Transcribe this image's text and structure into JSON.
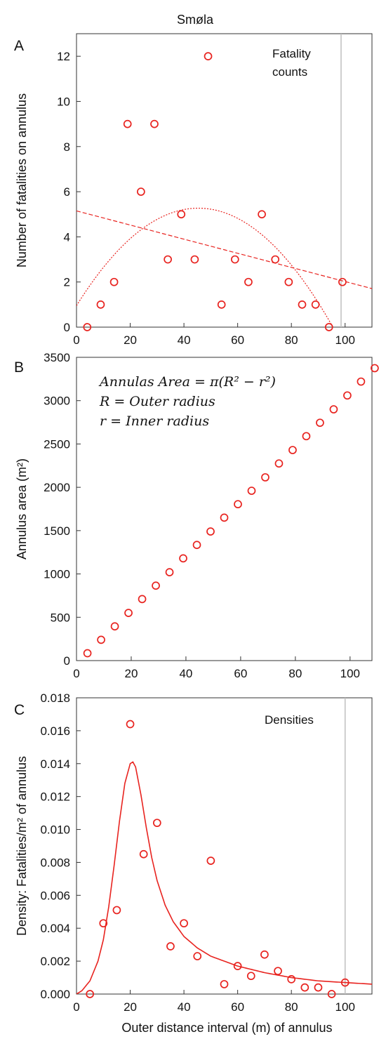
{
  "figure_title": "Smøla",
  "chart_data": [
    {
      "panel_label": "A",
      "type": "scatter",
      "ylabel": "Number of fatalities on annulus",
      "xlim": [
        0,
        110
      ],
      "ylim": [
        0,
        13
      ],
      "xticks": [
        0,
        20,
        40,
        60,
        80,
        100
      ],
      "yticks": [
        0,
        2,
        4,
        6,
        8,
        10,
        12
      ],
      "xtick_labels": [
        "0",
        "20",
        "40",
        "60",
        "80",
        "100"
      ],
      "ytick_labels": [
        "0",
        "2",
        "4",
        "6",
        "8",
        "10",
        "12"
      ],
      "annotation_lines": [
        "Fatality",
        "counts"
      ],
      "vline_x": 98.5,
      "marker_color": "#e8231f",
      "vline_color": "#bfbfbf",
      "points": {
        "x": [
          4,
          9,
          14,
          19,
          24,
          29,
          34,
          39,
          44,
          49,
          54,
          59,
          64,
          69,
          74,
          79,
          84,
          89,
          94,
          99
        ],
        "y": [
          0,
          1,
          2,
          9,
          6,
          9,
          3,
          5,
          3,
          12,
          1,
          3,
          2,
          5,
          3,
          2,
          1,
          1,
          0,
          2
        ]
      },
      "fits": [
        {
          "kind": "linear",
          "intercept": 5.15,
          "slope": -0.0313,
          "x_range": [
            0,
            110
          ],
          "style": "dashed"
        },
        {
          "kind": "quadratic",
          "a": -0.0021,
          "b": 0.1905,
          "c": 0.95,
          "x_range": [
            0,
            110
          ],
          "style": "dotted"
        }
      ]
    },
    {
      "panel_label": "B",
      "type": "scatter",
      "ylabel": "Annulus area (m²)",
      "xlim": [
        0,
        108
      ],
      "ylim": [
        0,
        3500
      ],
      "xticks": [
        0,
        20,
        40,
        60,
        80,
        100
      ],
      "yticks": [
        0,
        500,
        1000,
        1500,
        2000,
        2500,
        3000,
        3500
      ],
      "xtick_labels": [
        "0",
        "20",
        "40",
        "60",
        "80",
        "100"
      ],
      "ytick_labels": [
        "0",
        "500",
        "1000",
        "1500",
        "2000",
        "2500",
        "3000",
        "3500"
      ],
      "formula_lines": [
        "Annulas Area = π(R² − r²)",
        "R = Outer radius",
        "r = Inner radius"
      ],
      "marker_color": "#e8231f",
      "points": {
        "x": [
          4,
          9,
          14,
          19,
          24,
          29,
          34,
          39,
          44,
          49,
          54,
          59,
          64,
          69,
          74,
          79,
          84,
          89,
          94,
          99,
          104,
          109
        ],
        "y": [
          85,
          240,
          395,
          550,
          710,
          865,
          1020,
          1180,
          1335,
          1490,
          1650,
          1805,
          1960,
          2115,
          2275,
          2430,
          2590,
          2745,
          2900,
          3060,
          3220,
          3375
        ]
      }
    },
    {
      "panel_label": "C",
      "type": "scatter",
      "xlabel": "Outer distance interval (m) of annulus",
      "ylabel": "Density: Fatalities/m² of annulus",
      "xlim": [
        0,
        110
      ],
      "ylim": [
        0,
        0.018
      ],
      "xticks": [
        0,
        20,
        40,
        60,
        80,
        100
      ],
      "yticks": [
        0,
        0.002,
        0.004,
        0.006,
        0.008,
        0.01,
        0.012,
        0.014,
        0.016,
        0.018
      ],
      "xtick_labels": [
        "0",
        "20",
        "40",
        "60",
        "80",
        "100"
      ],
      "ytick_labels": [
        "0.000",
        "0.002",
        "0.004",
        "0.006",
        "0.008",
        "0.010",
        "0.012",
        "0.014",
        "0.016",
        "0.018"
      ],
      "annotation_lines": [
        "Densities"
      ],
      "vline_x": 100,
      "marker_color": "#e8231f",
      "vline_color": "#bfbfbf",
      "points": {
        "x": [
          5,
          10,
          15,
          20,
          25,
          30,
          35,
          40,
          45,
          50,
          55,
          60,
          65,
          70,
          75,
          80,
          85,
          90,
          95,
          100
        ],
        "y": [
          0.0,
          0.0043,
          0.0051,
          0.0164,
          0.0085,
          0.0104,
          0.0029,
          0.0043,
          0.0023,
          0.0081,
          0.0006,
          0.0017,
          0.0011,
          0.0024,
          0.0014,
          0.0009,
          0.0004,
          0.0004,
          0.0,
          0.0007
        ]
      },
      "fits": [
        {
          "kind": "peaked",
          "x_range": [
            0,
            110
          ],
          "style": "solid",
          "knots_x": [
            0,
            2,
            5,
            8,
            10,
            12,
            14,
            16,
            18,
            20,
            21,
            22,
            24,
            26,
            28,
            30,
            33,
            36,
            40,
            45,
            50,
            60,
            70,
            80,
            90,
            100,
            110
          ],
          "knots_y": [
            0,
            0.0002,
            0.0008,
            0.002,
            0.0033,
            0.0053,
            0.0078,
            0.0105,
            0.0128,
            0.014,
            0.0141,
            0.0138,
            0.0121,
            0.0101,
            0.0083,
            0.0069,
            0.0054,
            0.0044,
            0.0035,
            0.0028,
            0.0023,
            0.0017,
            0.0013,
            0.001,
            0.0008,
            0.0007,
            0.0006
          ]
        }
      ]
    }
  ]
}
